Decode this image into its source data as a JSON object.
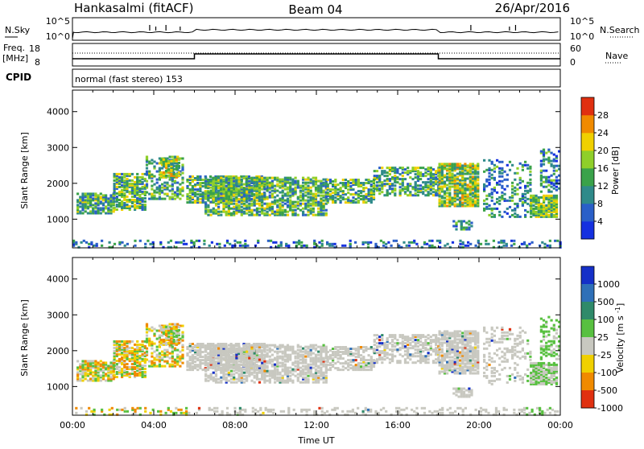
{
  "header": {
    "station": "Hankasalmi (fitACF)",
    "beam": "Beam 04",
    "date": "26/Apr/2016"
  },
  "noise_panel": {
    "left_label": "N.Sky",
    "right_label": "N.Search",
    "left_ticks": [
      "10^5",
      "10^0"
    ],
    "right_ticks": [
      "10^5",
      "10^0"
    ]
  },
  "freq_panel": {
    "left_label_line1": "Freq.",
    "left_label_line2": "[MHz]",
    "right_label": "Nave",
    "left_ticks": [
      "18",
      "8"
    ],
    "right_ticks": [
      "60",
      "0"
    ]
  },
  "cpid_panel": {
    "label": "CPID",
    "text": "normal (fast stereo) 153"
  },
  "chart_data": [
    {
      "type": "heatmap",
      "title": "",
      "xlabel": "",
      "ylabel": "Slant Range [km]",
      "xlim": [
        0,
        24
      ],
      "ylim": [
        200,
        4600
      ],
      "yticks": [
        "1000",
        "2000",
        "3000",
        "4000"
      ],
      "colorbar": {
        "label": "Power [dB]",
        "ticks": [
          "4",
          "8",
          "12",
          "16",
          "20",
          "24",
          "28"
        ],
        "colors": [
          "#1530e0",
          "#2a5fc8",
          "#2f8a8a",
          "#3aa24a",
          "#8fcf2a",
          "#f0d000",
          "#f08a00",
          "#e03010"
        ]
      }
    },
    {
      "type": "heatmap",
      "title": "",
      "xlabel": "Time UT",
      "ylabel": "Slant Range [km]",
      "xlim": [
        0,
        24
      ],
      "ylim": [
        200,
        4600
      ],
      "xticks": [
        "00:00",
        "04:00",
        "08:00",
        "12:00",
        "16:00",
        "20:00",
        "00:00"
      ],
      "yticks": [
        "1000",
        "2000",
        "3000",
        "4000"
      ],
      "colorbar": {
        "label": "Velocity [m s^-1]",
        "ticks": [
          "1000",
          "500",
          "100",
          "25",
          "-25",
          "-100",
          "-500",
          "-1000"
        ],
        "colors": [
          "#1530c8",
          "#2f70b8",
          "#2f8a6a",
          "#58c040",
          "#c8c8c0",
          "#f0d000",
          "#f08a00",
          "#e03010"
        ]
      }
    }
  ]
}
